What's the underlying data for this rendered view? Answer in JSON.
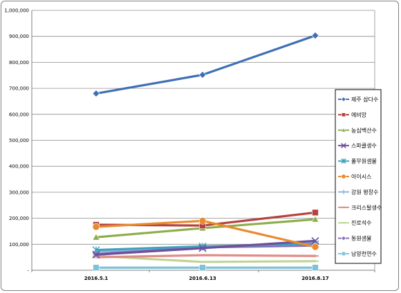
{
  "chart_data": {
    "type": "line",
    "categories": [
      "2016.5.1",
      "2016.6.13",
      "2016.8.17"
    ],
    "ylim": [
      0,
      1000000
    ],
    "yticks": [
      0,
      100000,
      200000,
      300000,
      400000,
      500000,
      600000,
      700000,
      800000,
      900000,
      1000000
    ],
    "ytick_labels": [
      "-",
      "100,000",
      "200,000",
      "300,000",
      "400,000",
      "500,000",
      "600,000",
      "700,000",
      "800,000",
      "900,000",
      "1,000,000"
    ],
    "grid": "horizontal",
    "legend_position": "right",
    "series": [
      {
        "name": "제주 삼다수",
        "color": "#3f6fb5",
        "marker": "diamond",
        "values": [
          680000,
          752000,
          903000
        ]
      },
      {
        "name": "에비앙",
        "color": "#b5423f",
        "marker": "square",
        "values": [
          175000,
          172000,
          222000
        ]
      },
      {
        "name": "농심백산수",
        "color": "#8fad4a",
        "marker": "triangle",
        "values": [
          127000,
          162000,
          196000
        ]
      },
      {
        "name": "스파클생수",
        "color": "#6f4f9a",
        "marker": "x",
        "values": [
          60000,
          85000,
          113000
        ]
      },
      {
        "name": "풀무원샘물",
        "color": "#3fa3bf",
        "marker": "star",
        "values": [
          78000,
          92000,
          101000
        ]
      },
      {
        "name": "아이시스",
        "color": "#e98a2e",
        "marker": "circle",
        "values": [
          167000,
          190000,
          90000
        ]
      },
      {
        "name": "강원 평창수",
        "color": "#93b2de",
        "marker": "plus",
        "values": [
          72000,
          88000,
          105000
        ]
      },
      {
        "name": "크리스탈생수",
        "color": "#e08c8a",
        "marker": "dash",
        "values": [
          50000,
          58000,
          55000
        ]
      },
      {
        "name": "진로석수",
        "color": "#bfd392",
        "marker": "dash",
        "values": [
          55000,
          32000,
          35000
        ]
      },
      {
        "name": "동원샘물",
        "color": "#8a6fb5",
        "marker": "diamond",
        "values": [
          62000,
          88000,
          95000
        ]
      },
      {
        "name": "남양천연수",
        "color": "#7fc2d8",
        "marker": "square",
        "values": [
          10000,
          10000,
          10000
        ]
      }
    ]
  }
}
